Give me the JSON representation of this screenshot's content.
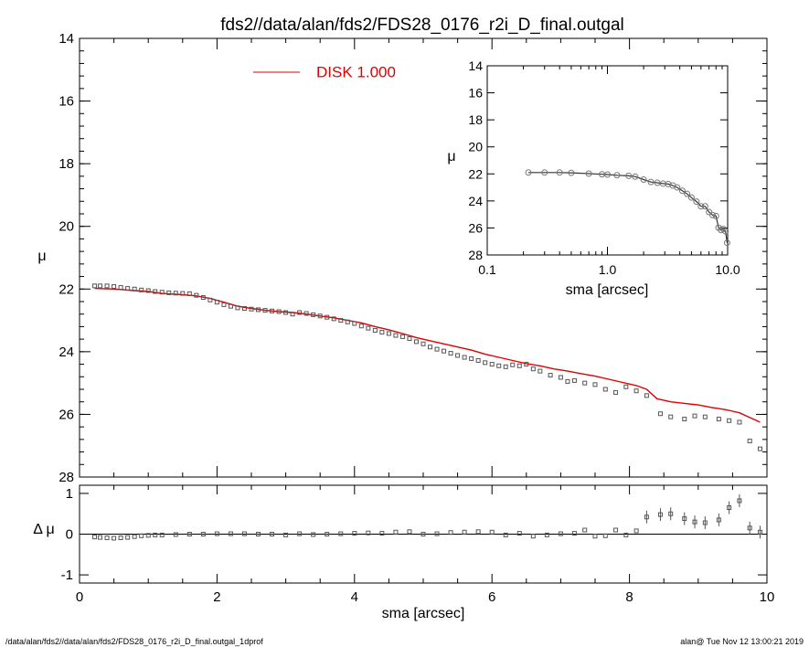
{
  "title": "fds2//data/alan/fds2/FDS28_0176_r2i_D_final.outgal",
  "footer_left": "/data/alan/fds2//data/alan/fds2/FDS28_0176_r2i_D_final.outgal_1dprof",
  "footer_right": "alan@  Tue Nov 12 13:00:21 2019",
  "colors": {
    "model": "#e00000",
    "data": "#555555",
    "axes": "#000000"
  },
  "chart_data": [
    {
      "type": "scatter",
      "panel": "main",
      "xlabel": "",
      "ylabel": "μ",
      "xlim": [
        0,
        10
      ],
      "ylim": [
        28,
        14
      ],
      "y_inverted": true,
      "yticks": [
        "14",
        "16",
        "18",
        "20",
        "22",
        "24",
        "26",
        "28"
      ],
      "legend": {
        "label": "DISK  1.000",
        "placement": "top-left"
      },
      "series": [
        {
          "name": "",
          "kind": "points",
          "x": [
            0.22,
            0.3,
            0.4,
            0.5,
            0.6,
            0.7,
            0.8,
            0.9,
            1.0,
            1.1,
            1.2,
            1.3,
            1.4,
            1.5,
            1.6,
            1.7,
            1.8,
            1.9,
            2.0,
            2.1,
            2.2,
            2.3,
            2.4,
            2.5,
            2.6,
            2.7,
            2.8,
            2.9,
            3.0,
            3.1,
            3.2,
            3.3,
            3.4,
            3.5,
            3.6,
            3.7,
            3.8,
            3.9,
            4.0,
            4.1,
            4.2,
            4.3,
            4.4,
            4.5,
            4.6,
            4.7,
            4.8,
            4.9,
            5.0,
            5.1,
            5.2,
            5.3,
            5.4,
            5.5,
            5.6,
            5.7,
            5.8,
            5.9,
            6.0,
            6.1,
            6.2,
            6.3,
            6.4,
            6.5,
            6.6,
            6.7,
            6.85,
            7.0,
            7.1,
            7.2,
            7.35,
            7.5,
            7.65,
            7.8,
            7.95,
            8.1,
            8.25,
            8.45,
            8.6,
            8.8,
            8.95,
            9.1,
            9.3,
            9.45,
            9.6,
            9.75,
            9.9
          ],
          "y": [
            21.9,
            21.9,
            21.9,
            21.92,
            21.95,
            21.98,
            22.0,
            22.03,
            22.05,
            22.08,
            22.1,
            22.12,
            22.13,
            22.14,
            22.15,
            22.2,
            22.27,
            22.35,
            22.42,
            22.5,
            22.55,
            22.6,
            22.62,
            22.64,
            22.66,
            22.68,
            22.7,
            22.72,
            22.75,
            22.8,
            22.75,
            22.78,
            22.82,
            22.86,
            22.9,
            22.95,
            23.0,
            23.05,
            23.1,
            23.18,
            23.25,
            23.32,
            23.38,
            23.42,
            23.48,
            23.52,
            23.58,
            23.68,
            23.75,
            23.85,
            23.92,
            23.98,
            24.05,
            24.12,
            24.18,
            24.22,
            24.28,
            24.35,
            24.4,
            24.45,
            24.48,
            24.42,
            24.45,
            24.4,
            24.55,
            24.62,
            24.75,
            24.82,
            24.95,
            24.92,
            25.0,
            25.05,
            25.2,
            25.3,
            25.12,
            25.25,
            25.4,
            25.98,
            26.08,
            26.15,
            26.05,
            26.08,
            26.15,
            26.2,
            26.25,
            26.85,
            27.1
          ]
        },
        {
          "name": "DISK  1.000",
          "kind": "line",
          "x": [
            0.22,
            0.5,
            0.8,
            1.0,
            1.2,
            1.5,
            1.7,
            1.9,
            2.1,
            2.3,
            2.5,
            2.7,
            2.9,
            3.1,
            3.3,
            3.5,
            3.7,
            3.9,
            4.1,
            4.3,
            4.5,
            4.7,
            4.9,
            5.1,
            5.3,
            5.5,
            5.7,
            5.9,
            6.1,
            6.3,
            6.5,
            6.7,
            6.9,
            7.1,
            7.3,
            7.5,
            7.7,
            7.9,
            8.1,
            8.25,
            8.4,
            8.6,
            8.8,
            9.0,
            9.2,
            9.4,
            9.5,
            9.6,
            9.75,
            9.9
          ],
          "y": [
            21.98,
            22.0,
            22.05,
            22.08,
            22.14,
            22.18,
            22.22,
            22.3,
            22.42,
            22.55,
            22.62,
            22.68,
            22.72,
            22.75,
            22.8,
            22.86,
            22.92,
            23.0,
            23.08,
            23.2,
            23.3,
            23.42,
            23.55,
            23.65,
            23.75,
            23.85,
            23.95,
            24.08,
            24.18,
            24.28,
            24.38,
            24.45,
            24.55,
            24.62,
            24.7,
            24.78,
            24.88,
            24.98,
            25.08,
            25.2,
            25.5,
            25.6,
            25.65,
            25.7,
            25.78,
            25.85,
            25.9,
            25.95,
            26.1,
            26.25
          ]
        }
      ]
    },
    {
      "type": "scatter",
      "panel": "inset",
      "xlabel": "sma [arcsec]",
      "ylabel": "μ",
      "x_log": true,
      "xlim": [
        0.1,
        10.0
      ],
      "ylim": [
        28,
        14
      ],
      "y_inverted": true,
      "xticks": [
        "0.1",
        "1.0",
        "10.0"
      ],
      "yticks": [
        "14",
        "16",
        "18",
        "20",
        "22",
        "24",
        "26",
        "28"
      ],
      "series": [
        {
          "name": "",
          "kind": "points",
          "x": [
            0.22,
            0.3,
            0.4,
            0.5,
            0.7,
            0.9,
            1.0,
            1.2,
            1.5,
            1.7,
            2.0,
            2.3,
            2.6,
            2.9,
            3.2,
            3.5,
            3.8,
            4.2,
            4.6,
            5.0,
            5.5,
            6.0,
            6.5,
            7.0,
            7.5,
            8.0,
            8.4,
            8.8,
            9.2,
            9.6,
            9.9
          ],
          "y": [
            21.9,
            21.9,
            21.9,
            21.92,
            21.98,
            22.03,
            22.05,
            22.1,
            22.14,
            22.2,
            22.42,
            22.6,
            22.66,
            22.72,
            22.75,
            22.86,
            23.0,
            23.25,
            23.48,
            23.75,
            24.05,
            24.4,
            24.4,
            24.82,
            25.05,
            25.12,
            25.98,
            26.15,
            26.08,
            26.25,
            27.1
          ]
        }
      ]
    },
    {
      "type": "scatter",
      "panel": "residuals",
      "xlabel": "sma [arcsec]",
      "ylabel": "Δ μ",
      "xlim": [
        0,
        10
      ],
      "ylim": [
        -1.2,
        1.2
      ],
      "xticks": [
        "0",
        "2",
        "4",
        "6",
        "8",
        "10"
      ],
      "yticks": [
        "1",
        "0",
        "-1"
      ],
      "reference_line": 0,
      "series": [
        {
          "name": "",
          "kind": "points",
          "x": [
            0.22,
            0.3,
            0.4,
            0.5,
            0.6,
            0.7,
            0.8,
            0.9,
            1.0,
            1.1,
            1.2,
            1.4,
            1.6,
            1.8,
            2.0,
            2.2,
            2.4,
            2.6,
            2.8,
            3.0,
            3.2,
            3.4,
            3.6,
            3.8,
            4.0,
            4.2,
            4.4,
            4.6,
            4.8,
            5.0,
            5.2,
            5.4,
            5.6,
            5.8,
            6.0,
            6.2,
            6.4,
            6.6,
            6.8,
            7.0,
            7.2,
            7.35,
            7.5,
            7.65,
            7.8,
            7.95,
            8.1,
            8.25,
            8.45,
            8.6,
            8.8,
            8.95,
            9.1,
            9.3,
            9.45,
            9.6,
            9.75,
            9.9
          ],
          "y": [
            -0.07,
            -0.08,
            -0.09,
            -0.1,
            -0.09,
            -0.08,
            -0.06,
            -0.04,
            -0.03,
            -0.02,
            -0.02,
            -0.01,
            0.0,
            0.0,
            0.01,
            0.01,
            0.01,
            0.0,
            0.0,
            -0.02,
            0.01,
            -0.01,
            0.0,
            0.01,
            0.02,
            0.03,
            0.02,
            0.05,
            0.06,
            0.0,
            0.01,
            0.04,
            0.05,
            0.06,
            0.05,
            -0.02,
            0.02,
            -0.05,
            -0.02,
            0.01,
            0.02,
            0.1,
            -0.05,
            -0.04,
            0.1,
            -0.02,
            0.08,
            0.42,
            0.48,
            0.5,
            0.38,
            0.3,
            0.28,
            0.35,
            0.65,
            0.82,
            0.15,
            0.05
          ]
        }
      ]
    }
  ]
}
